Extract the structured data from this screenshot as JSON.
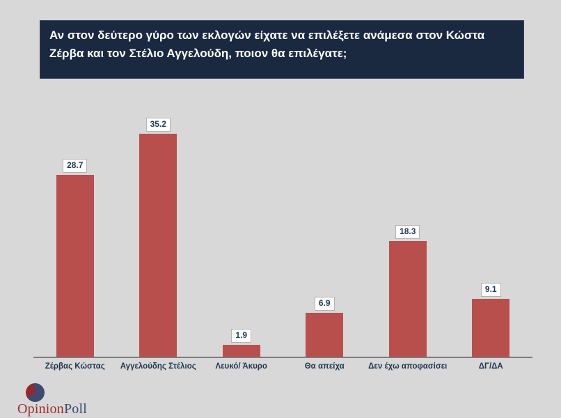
{
  "header": {
    "question": "Αν στον δεύτερο γύρο των εκλογών είχατε να επιλέξετε ανάμεσα στον Κώστα Ζέρβα και τον Στέλιο Αγγελούδη, ποιον θα επιλέγατε;"
  },
  "chart_data": {
    "type": "bar",
    "title": "",
    "categories": [
      "Ζέρβας Κώστας",
      "Αγγελούδης Στέλιος",
      "Λευκό/ Άκυρο",
      "Θα απείχα",
      "Δεν έχω αποφασίσει",
      "ΔΓ/ΔΑ"
    ],
    "values": [
      28.7,
      35.2,
      1.9,
      6.9,
      18.3,
      9.1
    ],
    "xlabel": "",
    "ylabel": "",
    "ylim": [
      0,
      40
    ],
    "grid": false,
    "legend": false,
    "data_labels": true,
    "bar_color": "#b94f4d",
    "axis_line_color": "#7b7b7b",
    "data_label_text_color": "#1f3a58",
    "data_label_bg": "#ffffff"
  },
  "colors": {
    "background": "#d8d8d8",
    "header_bg": "#1a2940",
    "header_text": "#ffffff"
  },
  "logo": {
    "part1": "Opinion",
    "part2": "Poll",
    "part1_color": "#a52a2f",
    "part2_color": "#3e4a6b"
  }
}
